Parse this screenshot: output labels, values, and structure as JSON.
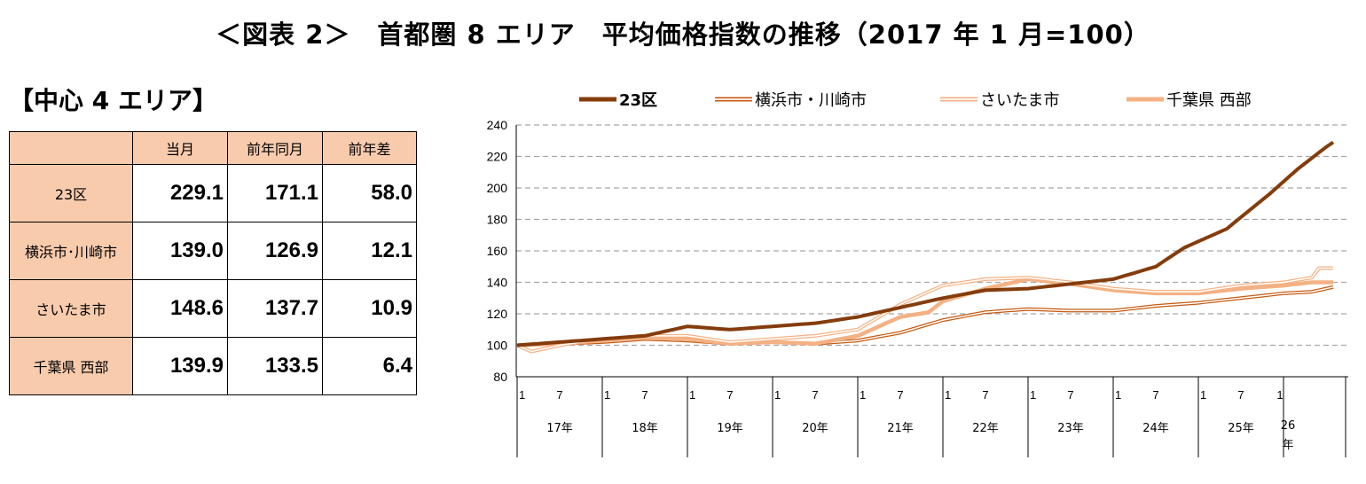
{
  "page_title": "＜図表 2＞　首都圏 8 エリア　平均価格指数の推移（2017 年 1 月=100）",
  "section_title": "【中心 4 エリア】",
  "table": {
    "headers": [
      "",
      "当月",
      "前年同月",
      "前年差"
    ],
    "rows": [
      {
        "label": "23区",
        "current": "229.1",
        "prev_year": "171.1",
        "diff": "58.0"
      },
      {
        "label": "横浜市･川崎市",
        "current": "139.0",
        "prev_year": "126.9",
        "diff": "12.1"
      },
      {
        "label": "さいたま市",
        "current": "148.6",
        "prev_year": "137.7",
        "diff": "10.9"
      },
      {
        "label": "千葉県 西部",
        "current": "139.9",
        "prev_year": "133.5",
        "diff": "6.4"
      }
    ],
    "colors": {
      "header_bg": "#f8cbad"
    }
  },
  "chart_data": {
    "type": "line",
    "ylim": [
      80,
      240
    ],
    "yticks": [
      80,
      100,
      120,
      140,
      160,
      180,
      200,
      220,
      240
    ],
    "grid": "horizontal-dashed",
    "legend_position": "top",
    "month_ticks": [
      "1",
      "7"
    ],
    "last_month_tick": "1",
    "year_labels": [
      "17年",
      "18年",
      "19年",
      "20年",
      "21年",
      "22年",
      "23年",
      "24年",
      "25年"
    ],
    "last_year_label_lines": [
      "26",
      "年"
    ],
    "series": [
      {
        "name": "23区",
        "color": "#843c0c",
        "style": "solid",
        "anchors": [
          [
            0,
            100
          ],
          [
            6,
            102
          ],
          [
            12,
            104
          ],
          [
            18,
            106
          ],
          [
            22,
            110
          ],
          [
            24,
            112
          ],
          [
            30,
            110
          ],
          [
            36,
            112
          ],
          [
            42,
            114
          ],
          [
            48,
            118
          ],
          [
            54,
            124
          ],
          [
            60,
            130
          ],
          [
            66,
            135
          ],
          [
            72,
            136
          ],
          [
            78,
            139
          ],
          [
            84,
            142
          ],
          [
            90,
            150
          ],
          [
            94,
            162
          ],
          [
            100,
            174
          ],
          [
            106,
            196
          ],
          [
            110,
            212
          ],
          [
            114,
            226
          ],
          [
            115,
            229
          ]
        ]
      },
      {
        "name": "横浜市・川崎市",
        "color": "#c55a11",
        "style": "double",
        "anchors": [
          [
            0,
            100
          ],
          [
            6,
            101
          ],
          [
            12,
            102
          ],
          [
            18,
            104
          ],
          [
            24,
            103
          ],
          [
            30,
            101
          ],
          [
            36,
            102
          ],
          [
            42,
            101
          ],
          [
            48,
            103
          ],
          [
            54,
            108
          ],
          [
            60,
            116
          ],
          [
            66,
            121
          ],
          [
            72,
            123
          ],
          [
            78,
            122
          ],
          [
            84,
            122
          ],
          [
            90,
            125
          ],
          [
            96,
            127
          ],
          [
            102,
            130
          ],
          [
            108,
            133
          ],
          [
            112,
            134
          ],
          [
            115,
            137
          ]
        ]
      },
      {
        "name": "さいたま市",
        "color": "#f4b183",
        "style": "double",
        "anchors": [
          [
            0,
            100
          ],
          [
            2,
            96
          ],
          [
            6,
            100
          ],
          [
            12,
            104
          ],
          [
            18,
            106
          ],
          [
            24,
            106
          ],
          [
            30,
            102
          ],
          [
            36,
            104
          ],
          [
            42,
            106
          ],
          [
            48,
            110
          ],
          [
            54,
            126
          ],
          [
            60,
            138
          ],
          [
            66,
            142
          ],
          [
            72,
            143
          ],
          [
            78,
            140
          ],
          [
            84,
            136
          ],
          [
            90,
            134
          ],
          [
            96,
            134
          ],
          [
            102,
            138
          ],
          [
            108,
            140
          ],
          [
            112,
            143
          ],
          [
            113,
            149
          ],
          [
            115,
            149
          ]
        ]
      },
      {
        "name": "千葉県 西部",
        "color": "#f4b183",
        "style": "thick",
        "anchors": [
          [
            0,
            100
          ],
          [
            6,
            101
          ],
          [
            12,
            103
          ],
          [
            18,
            105
          ],
          [
            24,
            104
          ],
          [
            30,
            101
          ],
          [
            36,
            102
          ],
          [
            42,
            101
          ],
          [
            48,
            106
          ],
          [
            54,
            118
          ],
          [
            58,
            121
          ],
          [
            60,
            128
          ],
          [
            66,
            136
          ],
          [
            72,
            142
          ],
          [
            78,
            139
          ],
          [
            84,
            135
          ],
          [
            90,
            133
          ],
          [
            96,
            133
          ],
          [
            102,
            136
          ],
          [
            108,
            138
          ],
          [
            112,
            140
          ],
          [
            115,
            140
          ]
        ]
      }
    ]
  }
}
